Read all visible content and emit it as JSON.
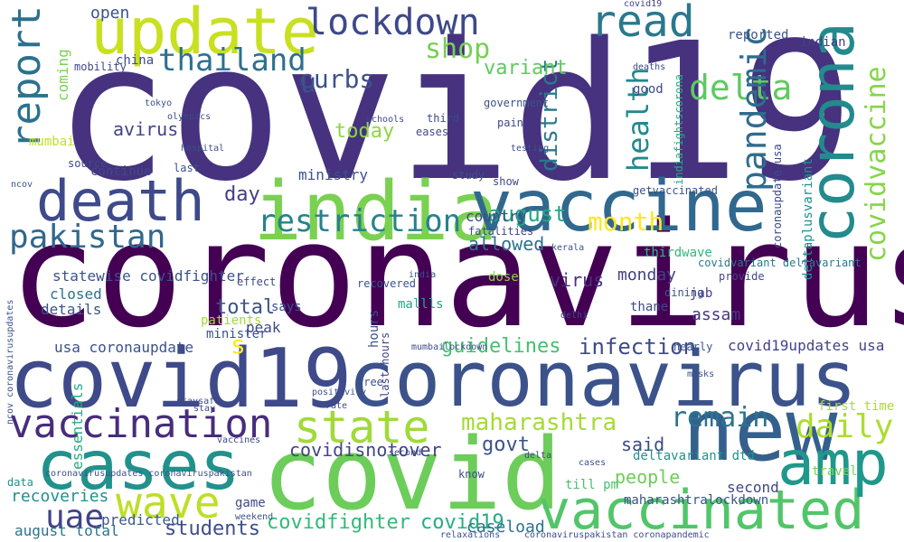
{
  "words": [
    {
      "text": "covid19",
      "color": "#46327e"
    },
    {
      "text": "coronavirus",
      "color": "#440154"
    },
    {
      "text": "covid",
      "color": "#6ccd5a"
    },
    {
      "text": "covid19",
      "color": "#3e4a89"
    },
    {
      "text": "coronavirus",
      "color": "#3b528b"
    },
    {
      "text": "india",
      "color": "#7ad151"
    },
    {
      "text": "vaccine",
      "color": "#31688e"
    },
    {
      "text": "new",
      "color": "#35608d"
    },
    {
      "text": "cases",
      "color": "#21918c"
    },
    {
      "text": "update",
      "color": "#c8e020"
    },
    {
      "text": "corona",
      "color": "#238a8d"
    },
    {
      "text": "death",
      "color": "#3e4a89"
    },
    {
      "text": "vaccinated",
      "color": "#52c569"
    },
    {
      "text": "amp",
      "color": "#1f988b"
    },
    {
      "text": "vaccination",
      "color": "#472d7b"
    },
    {
      "text": "wave",
      "color": "#bddf26"
    },
    {
      "text": "state",
      "color": "#a0da39"
    },
    {
      "text": "lockdown",
      "color": "#3e4989"
    },
    {
      "text": "read",
      "color": "#2a788e"
    },
    {
      "text": "delta",
      "color": "#5ec962"
    },
    {
      "text": "report",
      "color": "#2c718e"
    },
    {
      "text": "pakistan",
      "color": "#31688e"
    },
    {
      "text": "restriction",
      "color": "#26828e"
    },
    {
      "text": "thailand",
      "color": "#2d708e"
    },
    {
      "text": "pandemic",
      "color": "#2f6c8e"
    },
    {
      "text": "covidvaccine",
      "color": "#86d549"
    },
    {
      "text": "maharashtra",
      "color": "#a5db36"
    },
    {
      "text": "daily",
      "color": "#addc30"
    },
    {
      "text": "remain",
      "color": "#2c728e"
    },
    {
      "text": "shop",
      "color": "#75d054"
    },
    {
      "text": "health",
      "color": "#23898e"
    },
    {
      "text": "month",
      "color": "#fde725"
    },
    {
      "text": "august",
      "color": "#22a884"
    },
    {
      "text": "uae",
      "color": "#414487"
    },
    {
      "text": "curbs",
      "color": "#3b528b"
    },
    {
      "text": "district",
      "color": "#2a788e"
    },
    {
      "text": "covidfighter",
      "color": "#35b779"
    },
    {
      "text": "covid19",
      "color": "#25ac82"
    },
    {
      "text": "students",
      "color": "#3e4c8a"
    },
    {
      "text": "infection",
      "color": "#3e4a89"
    },
    {
      "text": "covidisnotover",
      "color": "#414487"
    },
    {
      "text": "govt",
      "color": "#3b528b"
    },
    {
      "text": "today",
      "color": "#8bd646"
    },
    {
      "text": "variant",
      "color": "#5ec962"
    },
    {
      "text": "allowed",
      "color": "#2d718e"
    },
    {
      "text": "guidelines",
      "color": "#44bf70"
    },
    {
      "text": "total",
      "color": "#3a538b"
    },
    {
      "text": "day",
      "color": "#433e85"
    },
    {
      "text": "virus",
      "color": "#46327e"
    },
    {
      "text": "covid19updates usa",
      "color": "#414487"
    },
    {
      "text": "usa coronaupdate",
      "color": "#3b528b"
    },
    {
      "text": "people",
      "color": "#6ece58"
    },
    {
      "text": "second",
      "color": "#414487"
    },
    {
      "text": "caseload",
      "color": "#2c728e"
    },
    {
      "text": "said",
      "color": "#3e4a89"
    },
    {
      "text": "assam",
      "color": "#453781"
    },
    {
      "text": "monday",
      "color": "#424086"
    },
    {
      "text": "statewise covidfighter",
      "color": "#3b528b"
    },
    {
      "text": "recoveries",
      "color": "#21918c"
    },
    {
      "text": "predicted",
      "color": "#38598c"
    },
    {
      "text": "august total",
      "color": "#2c728e"
    },
    {
      "text": "deltavariant dtd",
      "color": "#21918c"
    },
    {
      "text": "maharashtralockdown",
      "color": "#3b528b"
    },
    {
      "text": "essentials",
      "color": "#25ac82"
    },
    {
      "text": "mumbai",
      "color": "#c2df23"
    },
    {
      "text": "open",
      "color": "#3b528b"
    },
    {
      "text": "china",
      "color": "#3e4a89"
    },
    {
      "text": "avirus",
      "color": "#414487"
    },
    {
      "text": "closed",
      "color": "#2c728e"
    },
    {
      "text": "details",
      "color": "#3b528b"
    },
    {
      "text": "mobility",
      "color": "#3e4a89"
    },
    {
      "text": "coming",
      "color": "#7ad151"
    },
    {
      "text": "reported",
      "color": "#3b528b"
    },
    {
      "text": "indian",
      "color": "#433e85"
    },
    {
      "text": "good",
      "color": "#3e4a89"
    },
    {
      "text": "patients",
      "color": "#a0da39"
    },
    {
      "text": "ministry",
      "color": "#3b528b"
    },
    {
      "text": "country",
      "color": "#3e4a89"
    },
    {
      "text": "peak",
      "color": "#3e4a89"
    },
    {
      "text": "says",
      "color": "#3b528b"
    },
    {
      "text": "thane",
      "color": "#3e4a89"
    },
    {
      "text": "dose",
      "color": "#8bd646"
    },
    {
      "text": "jab",
      "color": "#433e85"
    },
    {
      "text": "thirdwave",
      "color": "#35b779"
    },
    {
      "text": "covidvariant deltavariant",
      "color": "#2a788e"
    },
    {
      "text": "deltaplusvariant",
      "color": "#21918c"
    },
    {
      "text": "coronaupdate usa",
      "color": "#3e4a89"
    },
    {
      "text": "indiafightscorona",
      "color": "#25ac82"
    },
    {
      "text": "getvaccinated",
      "color": "#3b528b"
    },
    {
      "text": "mallls",
      "color": "#22a884"
    },
    {
      "text": "minister",
      "color": "#3b528b"
    },
    {
      "text": "game",
      "color": "#3e4a89"
    },
    {
      "text": "travel",
      "color": "#7ad151"
    },
    {
      "text": "first time",
      "color": "#addc30"
    },
    {
      "text": "hours",
      "color": "#3b528b"
    },
    {
      "text": "last hours",
      "color": "#414487"
    },
    {
      "text": "s",
      "color": "#fde725"
    },
    {
      "text": "u",
      "color": "#3b528b"
    },
    {
      "text": "continue",
      "color": "#3e4a89"
    },
    {
      "text": "provide",
      "color": "#3e4a89"
    },
    {
      "text": "dining",
      "color": "#3b528b"
    },
    {
      "text": "nearly",
      "color": "#3b528b"
    },
    {
      "text": "source",
      "color": "#3e4a89"
    },
    {
      "text": "covid19",
      "color": "#433e85"
    },
    {
      "text": "recovered",
      "color": "#3b528b"
    },
    {
      "text": "show",
      "color": "#3e4a89"
    },
    {
      "text": "study",
      "color": "#3b528b"
    },
    {
      "text": "third",
      "color": "#3e4a89"
    },
    {
      "text": "eases",
      "color": "#3e4a89"
    },
    {
      "text": "pain",
      "color": "#3e4a89"
    },
    {
      "text": "government",
      "color": "#3b528b"
    },
    {
      "text": "fatalities",
      "color": "#3e4a89"
    },
    {
      "text": "last",
      "color": "#3b528b"
    },
    {
      "text": "coronaviruspakistan coronapandemic",
      "color": "#3e4a89"
    },
    {
      "text": "coronavirusupdates coronaviruspakistan",
      "color": "#3b528b"
    },
    {
      "text": "second",
      "color": "#3e4a89"
    },
    {
      "text": "data",
      "color": "#21918c"
    },
    {
      "text": "relaxations",
      "color": "#3b528b"
    },
    {
      "text": "till pm",
      "color": "#44bf70"
    },
    {
      "text": "know",
      "color": "#3e4a89"
    },
    {
      "text": "free",
      "color": "#3b528b"
    },
    {
      "text": "effect",
      "color": "#3e4a89"
    },
    {
      "text": "india",
      "color": "#3b528b"
    },
    {
      "text": "ncov coronavirusupdates",
      "color": "#3b528b"
    },
    {
      "text": "vaccines",
      "color": "#3e4a89"
    },
    {
      "text": "mumbailockdown",
      "color": "#3e4a89"
    },
    {
      "text": "weekend",
      "color": "#3b528b"
    },
    {
      "text": "delta",
      "color": "#3e4a89"
    },
    {
      "text": "cases",
      "color": "#3b528b"
    },
    {
      "text": "stay",
      "color": "#3e4a89"
    },
    {
      "text": "testing",
      "color": "#3b528b"
    },
    {
      "text": "schools",
      "color": "#3e4a89"
    },
    {
      "text": "hospital",
      "color": "#3b528b"
    },
    {
      "text": "deaths",
      "color": "#3e4a89"
    },
    {
      "text": "positivity",
      "color": "#3b528b"
    },
    {
      "text": "rate",
      "color": "#3e4a89"
    },
    {
      "text": "kerala",
      "color": "#3b528b"
    },
    {
      "text": "delhi",
      "color": "#3e4a89"
    },
    {
      "text": "tokyo",
      "color": "#3b528b"
    },
    {
      "text": "olympics",
      "color": "#3e4a89"
    },
    {
      "text": "masks",
      "color": "#3b528b"
    },
    {
      "text": "staysafe",
      "color": "#3e4a89"
    },
    {
      "text": "ncov",
      "color": "#3b528b"
    }
  ]
}
